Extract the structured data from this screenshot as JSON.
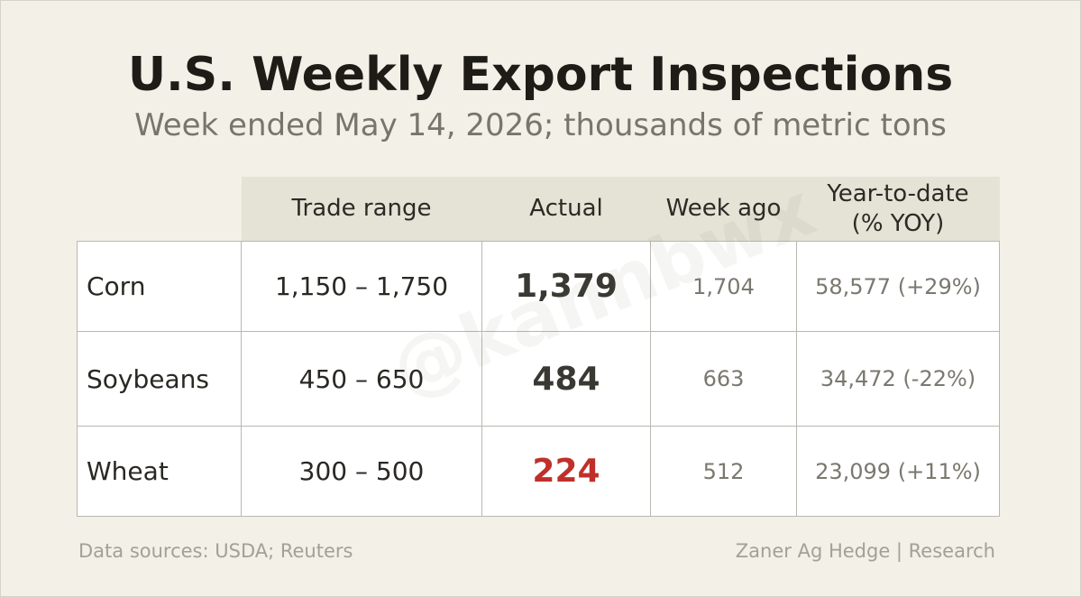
{
  "header": {
    "title": "U.S. Weekly Export Inspections",
    "subtitle": "Week ended May 14, 2026; thousands of metric tons"
  },
  "table": {
    "columns": [
      "Trade range",
      "Actual",
      "Week ago",
      "Year-to-date (% YOY)"
    ],
    "rows": [
      {
        "crop": "Corn",
        "trade_range": "1,150 – 1,750",
        "actual": "1,379",
        "actual_color": "#3a3832",
        "week_ago": "1,704",
        "ytd": "58,577 (+29%)"
      },
      {
        "crop": "Soybeans",
        "trade_range": "450 – 650",
        "actual": "484",
        "actual_color": "#3a3832",
        "week_ago": "663",
        "ytd": "34,472 (-22%)"
      },
      {
        "crop": "Wheat",
        "trade_range": "300 – 500",
        "actual": "224",
        "actual_color": "#c0302b",
        "week_ago": "512",
        "ytd": "23,099 (+11%)"
      }
    ]
  },
  "watermark": "@kannbwx",
  "footer": {
    "left": "Data sources: USDA; Reuters",
    "right": "Zaner Ag Hedge | Research"
  }
}
